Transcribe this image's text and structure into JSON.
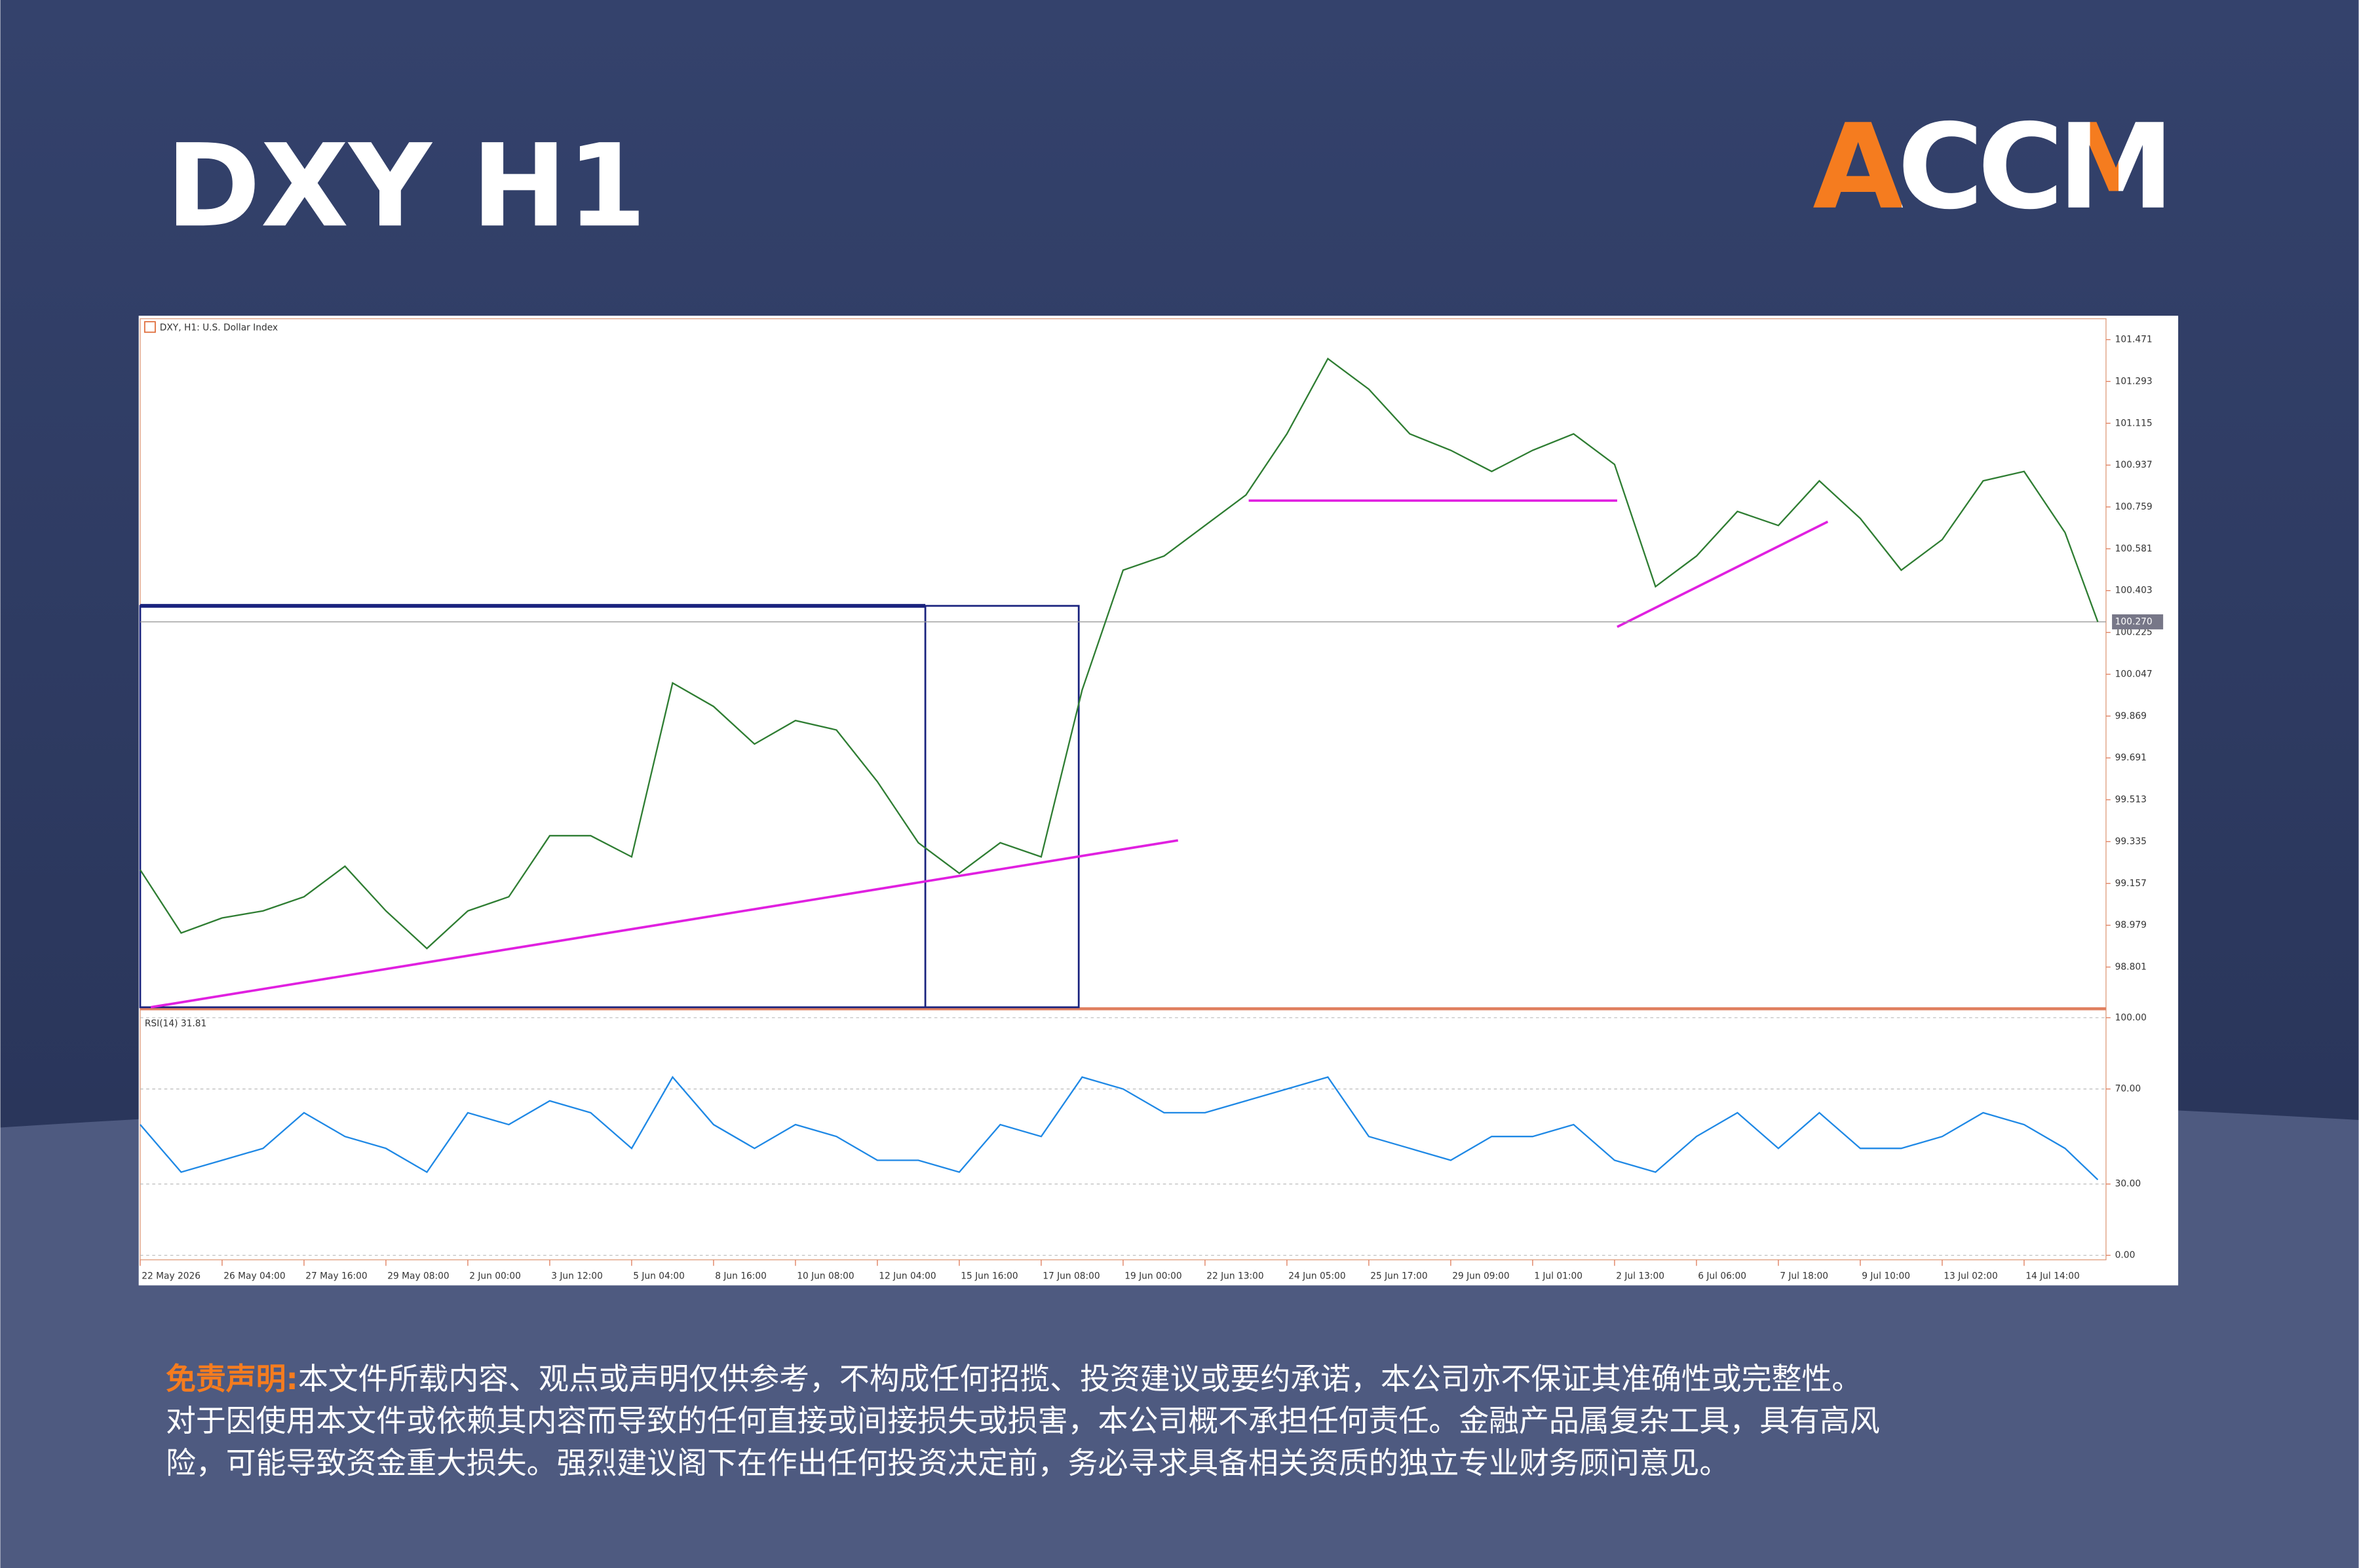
{
  "header": {
    "title": "DXY H1",
    "logo": "ACCM"
  },
  "chart_data": [
    {
      "type": "line",
      "title": "DXY, H1: U.S. Dollar Index",
      "color": "#2e7d32",
      "x": [
        0,
        0.5,
        1,
        1.5,
        2,
        2.5,
        3,
        3.5,
        4,
        4.5,
        5,
        5.5,
        6,
        6.5,
        7,
        7.5,
        8,
        8.5,
        9,
        9.5,
        10,
        10.5,
        11,
        11.5,
        12,
        12.5,
        13,
        13.5,
        14,
        14.5,
        15,
        15.5,
        16,
        16.5,
        17,
        17.5,
        18,
        18.5,
        19,
        19.5,
        20,
        20.5,
        21,
        21.5,
        22,
        22.5,
        23,
        23.5,
        23.9
      ],
      "values": [
        99.215,
        98.946,
        99.01,
        99.04,
        99.1,
        99.23,
        99.04,
        98.88,
        99.04,
        99.1,
        99.36,
        99.36,
        99.27,
        100.01,
        99.91,
        99.75,
        99.85,
        99.81,
        99.59,
        99.33,
        99.2,
        99.33,
        99.27,
        99.98,
        100.49,
        100.55,
        100.68,
        100.81,
        101.07,
        101.39,
        101.26,
        101.07,
        101.0,
        100.91,
        101.0,
        101.07,
        100.94,
        100.42,
        100.55,
        100.74,
        100.68,
        100.87,
        100.71,
        100.49,
        100.62,
        100.87,
        100.91,
        100.65,
        100.27
      ],
      "xlim": [
        0,
        24
      ],
      "ylim": [
        98.63,
        101.56
      ],
      "yticks": [
        98.801,
        98.979,
        99.157,
        99.335,
        99.513,
        99.691,
        99.869,
        100.047,
        100.225,
        100.403,
        100.581,
        100.759,
        100.937,
        101.115,
        101.293,
        101.471
      ],
      "current_price": {
        "value": 100.27,
        "label": "100.270"
      }
    },
    {
      "type": "line",
      "title": "RSI(14) 31.81",
      "color": "#1e88e5",
      "x": [
        0,
        0.5,
        1,
        1.5,
        2,
        2.5,
        3,
        3.5,
        4,
        4.5,
        5,
        5.5,
        6,
        6.5,
        7,
        7.5,
        8,
        8.5,
        9,
        9.5,
        10,
        10.5,
        11,
        11.5,
        12,
        12.5,
        13,
        13.5,
        14,
        14.5,
        15,
        15.5,
        16,
        16.5,
        17,
        17.5,
        18,
        18.5,
        19,
        19.5,
        20,
        20.5,
        21,
        21.5,
        22,
        22.5,
        23,
        23.5,
        23.9
      ],
      "values": [
        55,
        35,
        40,
        45,
        60,
        50,
        45,
        35,
        60,
        55,
        65,
        60,
        45,
        75,
        55,
        45,
        55,
        50,
        40,
        40,
        35,
        55,
        50,
        75,
        70,
        60,
        60,
        65,
        70,
        75,
        50,
        45,
        40,
        50,
        50,
        55,
        40,
        35,
        50,
        60,
        45,
        60,
        45,
        45,
        50,
        60,
        55,
        45,
        31.81
      ],
      "xlim": [
        0,
        24
      ],
      "ylim": [
        -1.9,
        102.5
      ],
      "yticks": [
        {
          "value": 0,
          "label": "0.00"
        },
        {
          "value": 30,
          "label": "30.00"
        },
        {
          "value": 70,
          "label": "70.00"
        },
        {
          "value": 100,
          "label": "100.00"
        }
      ],
      "xticks": [
        {
          "value": 0,
          "label": "22 May 2026"
        },
        {
          "value": 1,
          "label": "26 May 04:00"
        },
        {
          "value": 2,
          "label": "27 May 16:00"
        },
        {
          "value": 3,
          "label": "29 May 08:00"
        },
        {
          "value": 4,
          "label": "2 Jun 00:00"
        },
        {
          "value": 5,
          "label": "3 Jun 12:00"
        },
        {
          "value": 6,
          "label": "5 Jun 04:00"
        },
        {
          "value": 7,
          "label": "8 Jun 16:00"
        },
        {
          "value": 8,
          "label": "10 Jun 08:00"
        },
        {
          "value": 9,
          "label": "12 Jun 04:00"
        },
        {
          "value": 10,
          "label": "15 Jun 16:00"
        },
        {
          "value": 11,
          "label": "17 Jun 08:00"
        },
        {
          "value": 12,
          "label": "19 Jun 00:00"
        },
        {
          "value": 13,
          "label": "22 Jun 13:00"
        },
        {
          "value": 14,
          "label": "24 Jun 05:00"
        },
        {
          "value": 15,
          "label": "25 Jun 17:00"
        },
        {
          "value": 16,
          "label": "29 Jun 09:00"
        },
        {
          "value": 17,
          "label": "1 Jul 01:00"
        },
        {
          "value": 18,
          "label": "2 Jul 13:00"
        },
        {
          "value": 19,
          "label": "6 Jul 06:00"
        },
        {
          "value": 20,
          "label": "7 Jul 18:00"
        },
        {
          "value": 21,
          "label": "9 Jul 10:00"
        },
        {
          "value": 22,
          "label": "13 Jul 02:00"
        },
        {
          "value": 23,
          "label": "14 Jul 14:00"
        }
      ]
    }
  ],
  "disclaimer": {
    "label": "免责声明:",
    "lines": [
      "本文件所载内容、观点或声明仅供参考，不构成任何招揽、投资建议或要约承诺，本公司亦不保证其准确性或完整性。",
      "对于因使用本文件或依赖其内容而导致的任何直接或间接损失或损害，本公司概不承担任何责任。金融产品属复杂工具，具有高风",
      "险，可能导致资金重大损失。强烈建议阁下在作出任何投资决定前，务必寻求具备相关资质的独立专业财务顾问意见。"
    ]
  }
}
